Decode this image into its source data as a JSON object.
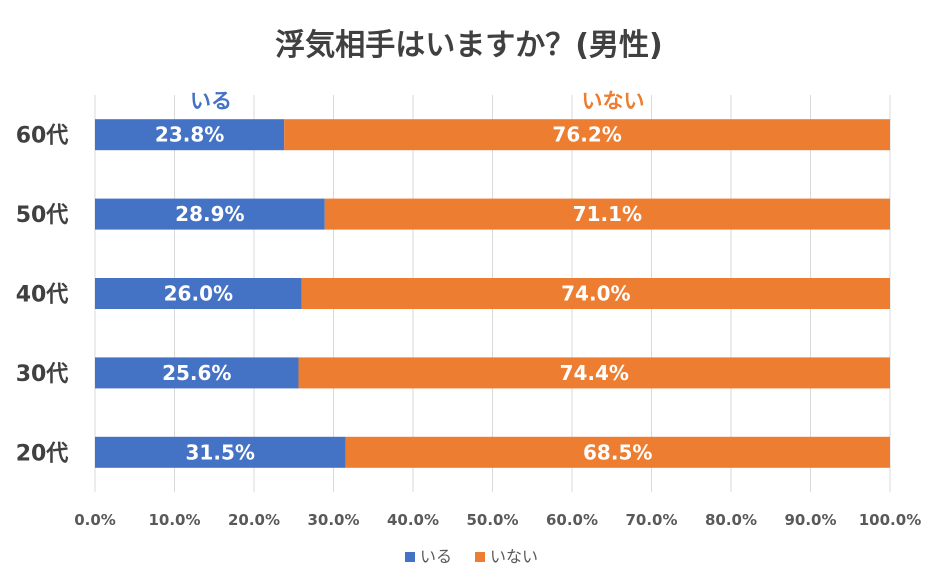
{
  "chart_data": {
    "type": "bar",
    "orientation": "horizontal",
    "stacked": "100%",
    "title": "浮気相手はいますか？(男性)",
    "categories": [
      "60代",
      "50代",
      "40代",
      "30代",
      "20代"
    ],
    "series": [
      {
        "name": "いる",
        "values": [
          23.8,
          28.9,
          26.0,
          25.6,
          31.5
        ],
        "color": "#4472c4"
      },
      {
        "name": "いない",
        "values": [
          76.2,
          71.1,
          74.0,
          74.4,
          68.5
        ],
        "color": "#ed7d31"
      }
    ],
    "data_labels": {
      "いる": [
        "23.8%",
        "28.9%",
        "26.0%",
        "25.6%",
        "31.5%"
      ],
      "いない": [
        "76.2%",
        "71.1%",
        "74.0%",
        "74.4%",
        "68.5%"
      ]
    },
    "xlim": [
      0,
      100
    ],
    "x_ticks": [
      "0.0%",
      "10.0%",
      "20.0%",
      "30.0%",
      "40.0%",
      "50.0%",
      "60.0%",
      "70.0%",
      "80.0%",
      "90.0%",
      "100.0%"
    ],
    "grid": true,
    "legend_position": "bottom",
    "series_headers": [
      "いる",
      "いない"
    ]
  }
}
